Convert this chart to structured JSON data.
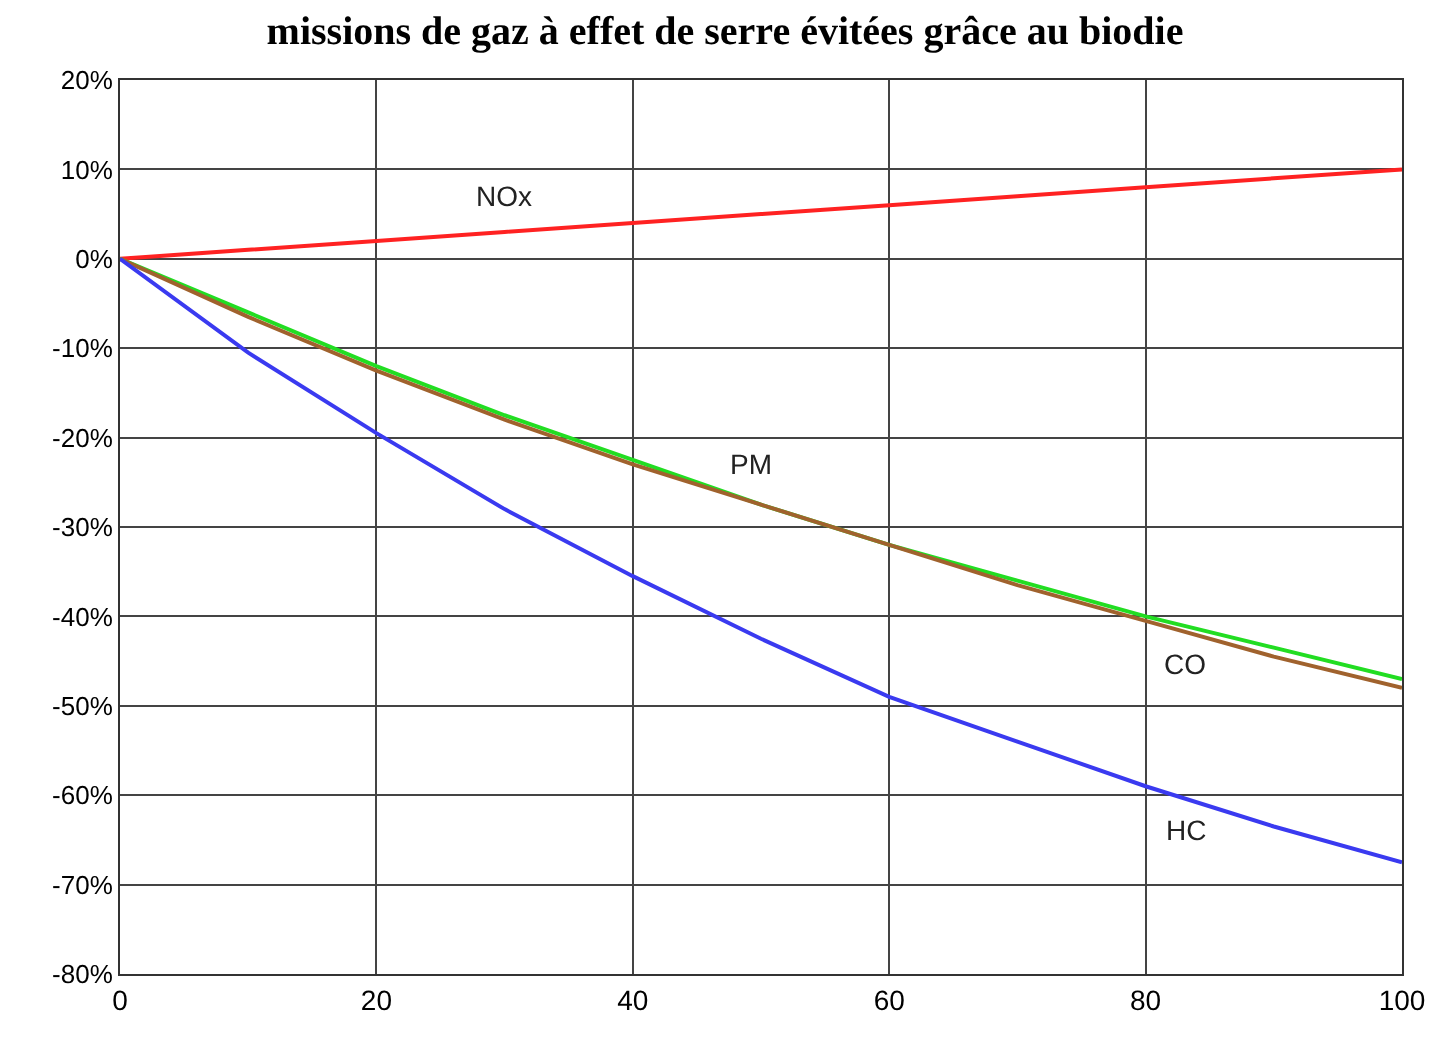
{
  "chart_data": {
    "type": "line",
    "title": "missions de gaz à effet de serre évitées grâce au biodie",
    "x": [
      0,
      10,
      20,
      30,
      40,
      50,
      60,
      70,
      80,
      90,
      100
    ],
    "series": [
      {
        "name": "NOx",
        "color": "#ff2222",
        "values": [
          0,
          1,
          2,
          3,
          4,
          5,
          6,
          7,
          8,
          9,
          10
        ]
      },
      {
        "name": "PM",
        "color": "#22dd22",
        "values": [
          0,
          -6,
          -12,
          -17.5,
          -22.5,
          -27.5,
          -32,
          -36,
          -40,
          -43.5,
          -47
        ]
      },
      {
        "name": "CO",
        "color": "#a0622d",
        "values": [
          0,
          -6.5,
          -12.5,
          -18,
          -23,
          -27.5,
          -32,
          -36.5,
          -40.5,
          -44.5,
          -48
        ]
      },
      {
        "name": "HC",
        "color": "#3a3af0",
        "values": [
          0,
          -10.5,
          -19.5,
          -28,
          -35.5,
          -42.5,
          -49,
          -54,
          -59,
          -63.5,
          -67.5
        ]
      }
    ],
    "xlim": [
      0,
      100
    ],
    "xticks": [
      0,
      20,
      40,
      60,
      80,
      100
    ],
    "ylim": [
      -80,
      20
    ],
    "yticks": [
      {
        "value": -80,
        "label": "-80%"
      },
      {
        "value": -70,
        "label": "-70%"
      },
      {
        "value": -60,
        "label": "-60%"
      },
      {
        "value": -50,
        "label": "-50%"
      },
      {
        "value": -40,
        "label": "-40%"
      },
      {
        "value": -30,
        "label": "-30%"
      },
      {
        "value": -20,
        "label": "-20%"
      },
      {
        "value": -10,
        "label": "-10%"
      },
      {
        "value": 0,
        "label": "0%"
      },
      {
        "value": 10,
        "label": "10%"
      },
      {
        "value": 20,
        "label": "20%"
      }
    ],
    "grid": true,
    "legend": false,
    "marker": "none",
    "line_style": "solid"
  }
}
